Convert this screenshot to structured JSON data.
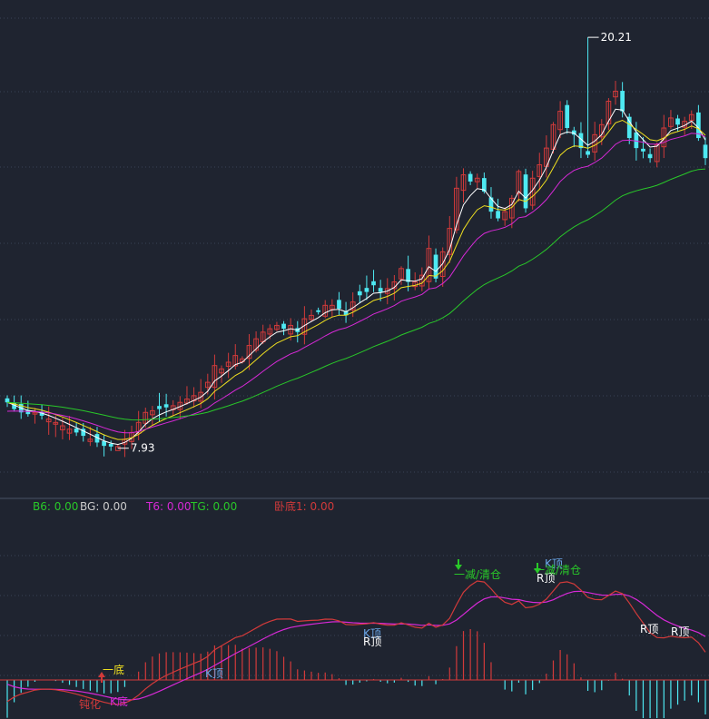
{
  "colors": {
    "background": "#1f2430",
    "grid": "#3a4256",
    "divider": "#4a5266",
    "up": "#d23a3a",
    "down": "#4ee9f2",
    "ma_white": "#ffffff",
    "ma_yellow": "#f0e020",
    "ma_magenta": "#d629d6",
    "ma_green": "#29c829"
  },
  "chart_data": [
    {
      "type": "candlestick",
      "panel": "main",
      "title": "",
      "annotations": [
        {
          "name": "high",
          "text": "20.21",
          "value": 20.21,
          "index": 84
        },
        {
          "name": "low",
          "text": "7.93",
          "value": 7.93,
          "index": 16
        }
      ],
      "ylim": [
        7.0,
        21.0
      ],
      "close": [
        9.3,
        9.1,
        9.0,
        8.95,
        9.0,
        8.9,
        8.8,
        8.7,
        8.6,
        8.5,
        8.4,
        8.3,
        8.2,
        8.1,
        8.0,
        7.98,
        7.98,
        8.2,
        8.4,
        8.7,
        9.0,
        9.05,
        9.1,
        9.15,
        9.2,
        9.3,
        9.4,
        9.5,
        9.6,
        9.9,
        10.4,
        10.3,
        10.5,
        10.7,
        10.6,
        11.0,
        11.2,
        11.4,
        11.5,
        11.6,
        11.5,
        11.6,
        11.4,
        11.8,
        11.9,
        12.0,
        12.2,
        12.2,
        12.1,
        11.9,
        12.3,
        12.5,
        12.6,
        12.8,
        12.6,
        12.7,
        12.9,
        13.3,
        12.9,
        12.9,
        13.1,
        13.9,
        13.0,
        13.8,
        14.5,
        15.7,
        16.1,
        15.9,
        16.0,
        15.6,
        15.0,
        14.8,
        15.0,
        15.4,
        16.2,
        15.1,
        16.0,
        16.4,
        16.9,
        17.6,
        18.0,
        17.5,
        17.3,
        16.9,
        16.7,
        17.3,
        17.6,
        18.3,
        18.6,
        18.0,
        17.2,
        16.9,
        16.8,
        16.6,
        17.0,
        17.5,
        17.8,
        17.6,
        17.7,
        17.9,
        17.2,
        16.6
      ],
      "ma_series": [
        {
          "color": "white",
          "role": "short MA"
        },
        {
          "color": "yellow",
          "role": "MA"
        },
        {
          "color": "magenta",
          "role": "MA"
        },
        {
          "color": "green",
          "role": "long MA"
        }
      ]
    },
    {
      "type": "oscillator",
      "panel": "indicator",
      "legend": [
        {
          "label": "B6: 0.00",
          "color": "#29c829"
        },
        {
          "label": "BG: 0.00",
          "color": "#cccccc"
        },
        {
          "label": "T6: 0.00",
          "color": "#d629d6"
        },
        {
          "label": "TG: 0.00",
          "color": "#29c829"
        },
        {
          "label": "卧底1: 0.00",
          "color": "#d23a3a"
        }
      ],
      "signals": [
        {
          "text": "一底",
          "color": "#f0e020"
        },
        {
          "text": "钝化",
          "color": "#d23a3a"
        },
        {
          "text": "K底",
          "color": "#d629d6"
        },
        {
          "text": "K顶",
          "color": "#6aa6e8"
        },
        {
          "text": "K顶",
          "color": "#6aa6e8"
        },
        {
          "text": "R顶",
          "color": "#ffffff"
        },
        {
          "text": "一减/清仓",
          "color": "#29c829"
        },
        {
          "text": "K顶",
          "color": "#6aa6e8"
        },
        {
          "text": "R顶",
          "color": "#ffffff"
        },
        {
          "text": "一减/清仓",
          "color": "#29c829"
        },
        {
          "text": "R顶",
          "color": "#ffffff"
        },
        {
          "text": "R顶",
          "color": "#ffffff"
        }
      ]
    }
  ]
}
